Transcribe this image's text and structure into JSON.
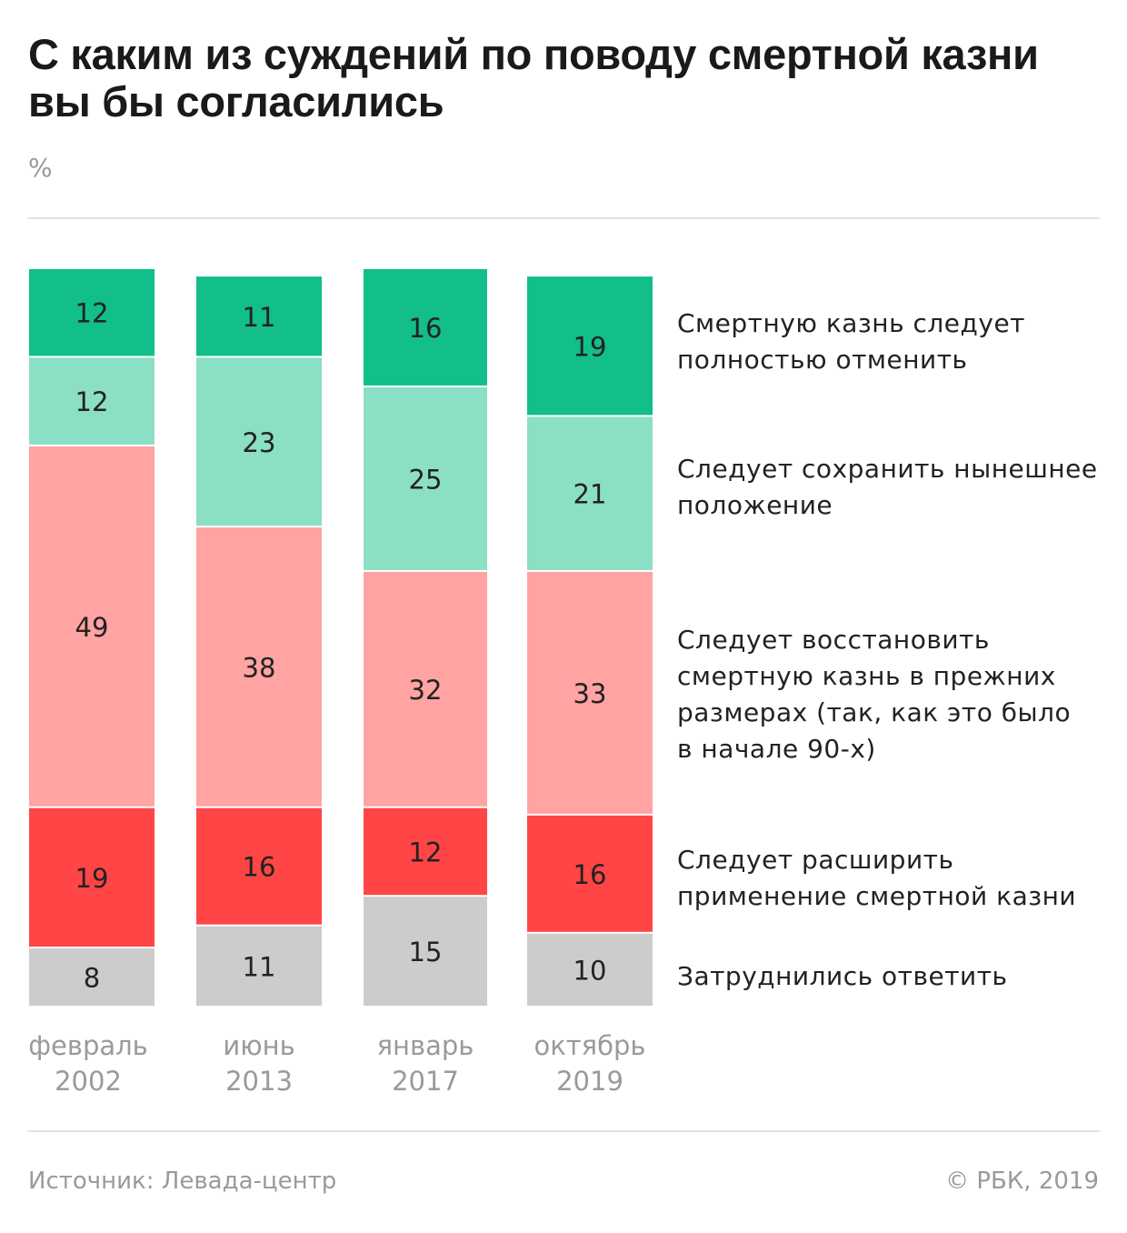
{
  "title": "С каким из суждений по поводу смертной казни вы бы согласились",
  "unit": "%",
  "footer": {
    "source": "Источник: Левада-центр",
    "copyright": "© РБК, 2019"
  },
  "chart_data": {
    "type": "bar",
    "stacked": true,
    "title": "С каким из суждений по поводу смертной казни вы бы согласились",
    "ylabel": "%",
    "categories": [
      {
        "month": "февраль",
        "year": "2002"
      },
      {
        "month": "июнь",
        "year": "2013"
      },
      {
        "month": "январь",
        "year": "2017"
      },
      {
        "month": "октябрь",
        "year": "2019"
      }
    ],
    "series": [
      {
        "name": "Смертную казнь следует полностью отменить",
        "color": "#12BE8A",
        "values": [
          12,
          11,
          16,
          19
        ]
      },
      {
        "name": "Следует сохранить нынешнее положение",
        "color": "#8BDFC4",
        "values": [
          12,
          23,
          25,
          21
        ]
      },
      {
        "name": "Следует восстановить смертную казнь в прежних размерах (так, как это было в начале 90-х)",
        "color": "#FFA3A3",
        "values": [
          49,
          38,
          32,
          33
        ]
      },
      {
        "name": "Следует расширить применение смертной казни",
        "color": "#FF4545",
        "values": [
          19,
          16,
          12,
          16
        ]
      },
      {
        "name": "Затруднились ответить",
        "color": "#CCCCCC",
        "values": [
          8,
          11,
          15,
          10
        ]
      }
    ],
    "legend": "right"
  }
}
